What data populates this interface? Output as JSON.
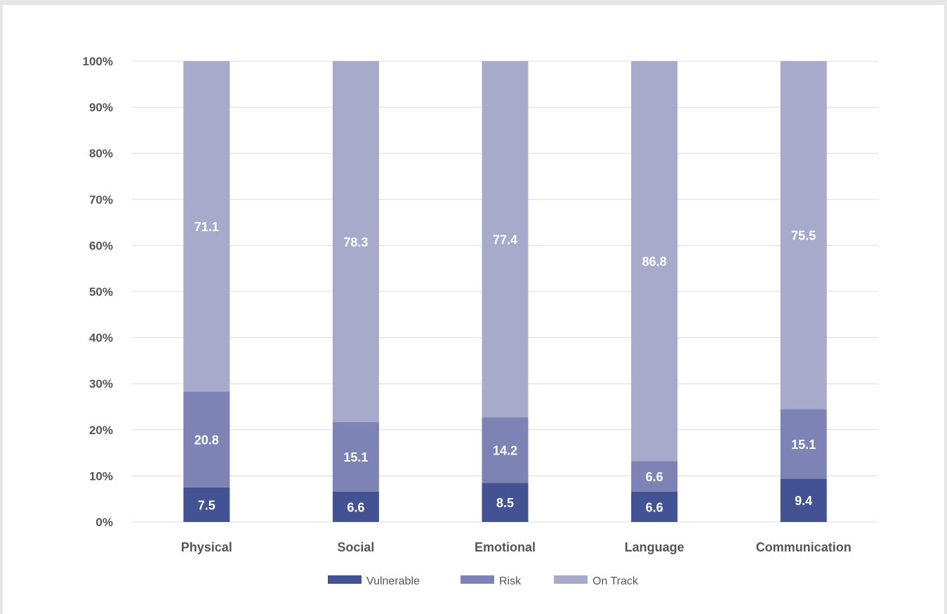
{
  "chart_data": {
    "type": "bar",
    "stacked": true,
    "categories": [
      "Physical",
      "Social",
      "Emotional",
      "Language",
      "Communication"
    ],
    "series": [
      {
        "name": "Vulnerable",
        "color": "#435293",
        "values": [
          7.5,
          6.6,
          8.5,
          6.6,
          9.4
        ]
      },
      {
        "name": "Risk",
        "color": "#7d83b4",
        "values": [
          20.8,
          15.1,
          14.2,
          6.6,
          15.1
        ]
      },
      {
        "name": "On Track",
        "color": "#a8aacb",
        "values": [
          71.1,
          78.3,
          77.4,
          86.8,
          75.5
        ]
      }
    ],
    "ylim": [
      0,
      100
    ],
    "yticks": [
      "0%",
      "10%",
      "20%",
      "30%",
      "40%",
      "50%",
      "60%",
      "70%",
      "80%",
      "90%",
      "100%"
    ],
    "grid": true,
    "legend": "bottom-center",
    "title": "",
    "xlabel": "",
    "ylabel": ""
  }
}
